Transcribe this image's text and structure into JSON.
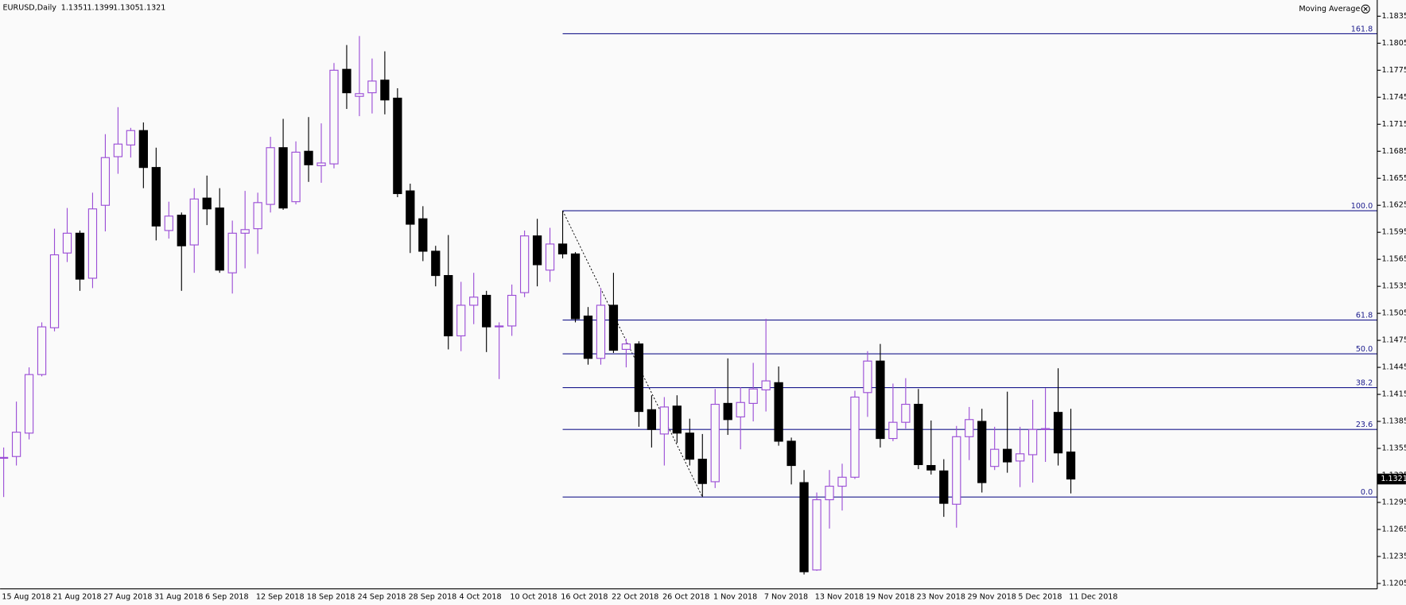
{
  "chart_data": {
    "type": "candlestick",
    "title": "EURUSD,Daily",
    "indicator": "Moving Average",
    "up_color": "#9b4dd6",
    "down_color": "#000000",
    "fib_color": "#1a1a8c",
    "categories": [
      "15 Aug 2018",
      null,
      null,
      null,
      "21 Aug 2018",
      null,
      null,
      null,
      "27 Aug 2018",
      null,
      null,
      null,
      "31 Aug 2018",
      null,
      null,
      null,
      "6 Sep 2018",
      null,
      null,
      null,
      "12 Sep 2018",
      null,
      null,
      null,
      "18 Sep 2018",
      null,
      null,
      null,
      "24 Sep 2018",
      null,
      null,
      null,
      "28 Sep 2018",
      null,
      null,
      null,
      "4 Oct 2018",
      null,
      null,
      null,
      "10 Oct 2018",
      null,
      null,
      null,
      "16 Oct 2018",
      null,
      null,
      null,
      "22 Oct 2018",
      null,
      null,
      null,
      "26 Oct 2018",
      null,
      null,
      null,
      "1 Nov 2018",
      null,
      null,
      null,
      "7 Nov 2018",
      null,
      null,
      null,
      "13 Nov 2018",
      null,
      null,
      null,
      "19 Nov 2018",
      null,
      null,
      null,
      "23 Nov 2018",
      null,
      null,
      null,
      "29 Nov 2018",
      null,
      null,
      null,
      "5 Dec 2018",
      null,
      null,
      null,
      "11 Dec 2018"
    ],
    "open": [
      1.1344,
      1.1346,
      1.1372,
      1.1437,
      1.1489,
      1.1572,
      1.1594,
      1.1544,
      1.1625,
      1.1679,
      1.1692,
      1.1708,
      1.1667,
      1.1597,
      1.1614,
      1.1581,
      1.1633,
      1.1622,
      1.155,
      1.1594,
      1.1599,
      1.1626,
      1.1689,
      1.1629,
      1.1685,
      1.1669,
      1.1671,
      1.1776,
      1.1746,
      1.175,
      1.1764,
      1.1744,
      1.1641,
      1.161,
      1.1574,
      1.1547,
      1.148,
      1.1514,
      1.1525,
      1.149,
      1.1491,
      1.1528,
      1.1591,
      1.1553,
      1.1582,
      1.1571,
      1.1502,
      1.1455,
      1.1514,
      1.1465,
      1.1471,
      1.1398,
      1.1371,
      1.1402,
      1.1372,
      1.1343,
      1.1318,
      1.1405,
      1.139,
      1.1405,
      1.142,
      1.1428,
      1.1363,
      1.1317,
      1.122,
      1.1298,
      1.1313,
      1.1323,
      1.1417,
      1.1452,
      1.1366,
      1.1384,
      1.1404,
      1.1336,
      1.133,
      1.1293,
      1.1368,
      1.1385,
      1.1335,
      1.1354,
      1.1341,
      1.1348,
      1.1376,
      1.1395,
      1.1351
    ],
    "high": [
      1.1356,
      1.1407,
      1.1445,
      1.1495,
      1.1599,
      1.1622,
      1.1597,
      1.1639,
      1.1704,
      1.1734,
      1.1711,
      1.1717,
      1.1689,
      1.1629,
      1.1617,
      1.1644,
      1.1658,
      1.1644,
      1.1608,
      1.1641,
      1.1639,
      1.1701,
      1.1721,
      1.1696,
      1.1723,
      1.1716,
      1.1783,
      1.1803,
      1.1813,
      1.1788,
      1.1796,
      1.1755,
      1.1649,
      1.1624,
      1.158,
      1.1592,
      1.154,
      1.155,
      1.153,
      1.1495,
      1.1537,
      1.1597,
      1.161,
      1.16,
      1.1619,
      1.1573,
      1.1512,
      1.1533,
      1.155,
      1.1477,
      1.1474,
      1.1414,
      1.1412,
      1.1414,
      1.1388,
      1.1371,
      1.1421,
      1.1455,
      1.1423,
      1.145,
      1.1499,
      1.1446,
      1.1367,
      1.1331,
      1.1306,
      1.1331,
      1.1338,
      1.1419,
      1.1463,
      1.1471,
      1.1427,
      1.1433,
      1.1421,
      1.1386,
      1.1343,
      1.138,
      1.1401,
      1.1399,
      1.1379,
      1.1418,
      1.1379,
      1.1409,
      1.1422,
      1.1444,
      1.1399
    ],
    "low": [
      1.1301,
      1.1336,
      1.1365,
      1.1435,
      1.1485,
      1.1562,
      1.153,
      1.1533,
      1.1596,
      1.166,
      1.1678,
      1.1644,
      1.1586,
      1.1588,
      1.153,
      1.155,
      1.1603,
      1.155,
      1.1527,
      1.1555,
      1.1571,
      1.1617,
      1.162,
      1.1626,
      1.1651,
      1.165,
      1.1666,
      1.1732,
      1.1724,
      1.1727,
      1.1726,
      1.1634,
      1.1572,
      1.1563,
      1.1535,
      1.1465,
      1.1463,
      1.1493,
      1.1462,
      1.1432,
      1.148,
      1.1523,
      1.1535,
      1.154,
      1.1566,
      1.1495,
      1.1448,
      1.1448,
      1.1461,
      1.1445,
      1.1379,
      1.1356,
      1.1336,
      1.1361,
      1.1336,
      1.1301,
      1.1311,
      1.137,
      1.1354,
      1.1385,
      1.1396,
      1.1358,
      1.1315,
      1.1215,
      1.1219,
      1.1266,
      1.1286,
      1.1321,
      1.139,
      1.1356,
      1.1363,
      1.1377,
      1.1332,
      1.1326,
      1.1279,
      1.1267,
      1.1342,
      1.1306,
      1.1331,
      1.1328,
      1.1312,
      1.1317,
      1.134,
      1.1336,
      1.1305
    ],
    "close": [
      1.1345,
      1.1373,
      1.1437,
      1.149,
      1.157,
      1.1594,
      1.1543,
      1.1621,
      1.1678,
      1.1693,
      1.1708,
      1.1667,
      1.1602,
      1.1613,
      1.158,
      1.1632,
      1.1621,
      1.1553,
      1.1594,
      1.1598,
      1.1628,
      1.1689,
      1.1622,
      1.1684,
      1.167,
      1.1672,
      1.1775,
      1.175,
      1.1749,
      1.1763,
      1.1742,
      1.1638,
      1.1604,
      1.1574,
      1.1547,
      1.148,
      1.1514,
      1.1523,
      1.149,
      1.1491,
      1.1525,
      1.1591,
      1.1559,
      1.1582,
      1.1571,
      1.1499,
      1.1455,
      1.1514,
      1.1464,
      1.1471,
      1.1396,
      1.1376,
      1.1401,
      1.1372,
      1.1343,
      1.1316,
      1.1404,
      1.1387,
      1.1406,
      1.1421,
      1.143,
      1.1363,
      1.1336,
      1.1218,
      1.1298,
      1.1313,
      1.1323,
      1.1412,
      1.1452,
      1.1366,
      1.1384,
      1.1404,
      1.1337,
      1.1331,
      1.1294,
      1.1368,
      1.1387,
      1.1317,
      1.1354,
      1.134,
      1.1349,
      1.1376,
      1.1377,
      1.135,
      1.1321
    ],
    "ylim": [
      1.1199,
      1.1853
    ],
    "yticks": [
      1.1835,
      1.1805,
      1.1775,
      1.1745,
      1.1715,
      1.1685,
      1.1655,
      1.1625,
      1.1595,
      1.1565,
      1.1535,
      1.1505,
      1.1475,
      1.1445,
      1.1415,
      1.1385,
      1.1355,
      1.1325,
      1.1295,
      1.1265,
      1.1235,
      1.1205
    ],
    "fibonacci": {
      "high": 1.1619,
      "low": 1.1301,
      "levels": [
        161.8,
        {
          "value": 100,
          "label": "100.0"
        },
        61.8,
        {
          "value": 50,
          "label": "50.0"
        },
        38.2,
        23.6,
        {
          "value": 0,
          "label": "0.0"
        }
      ]
    }
  }
}
